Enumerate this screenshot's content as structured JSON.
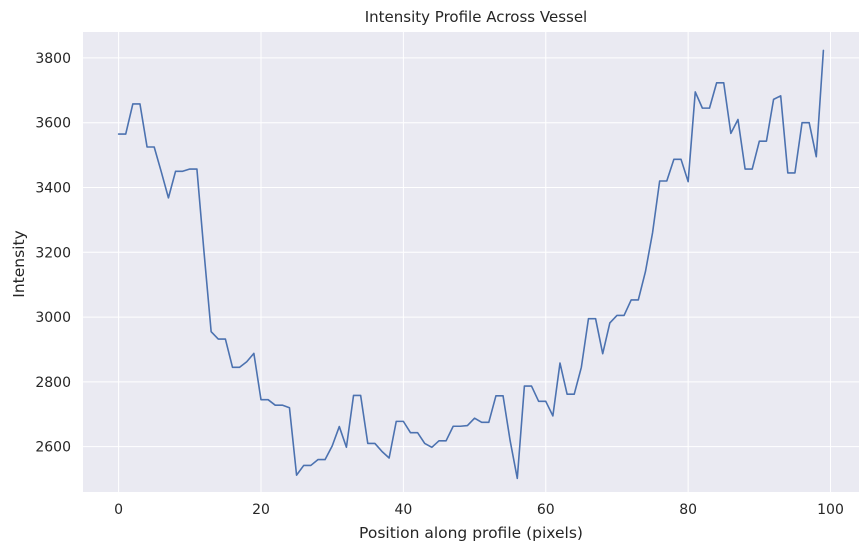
{
  "chart_data": {
    "type": "line",
    "title": "Intensity Profile Across Vessel",
    "xlabel": "Position along profile (pixels)",
    "ylabel": "Intensity",
    "xlim": [
      -5,
      104
    ],
    "ylim": [
      2460,
      3880
    ],
    "xticks": [
      0,
      20,
      40,
      60,
      80,
      100
    ],
    "yticks": [
      2600,
      2800,
      3000,
      3200,
      3400,
      3600,
      3800
    ],
    "grid": true,
    "background_color": "#eaeaf2",
    "grid_color": "#ffffff",
    "line_color": "#4c72b0",
    "series": [
      {
        "x": [
          0,
          1,
          2,
          3,
          4,
          5,
          6,
          7,
          8,
          9,
          10,
          11,
          12,
          13,
          14,
          15,
          16,
          17,
          18,
          19,
          20,
          21,
          22,
          23,
          24,
          25,
          26,
          27,
          28,
          29,
          30,
          31,
          32,
          33,
          34,
          35,
          36,
          37,
          38,
          39,
          40,
          41,
          42,
          43,
          44,
          45,
          46,
          47,
          48,
          49,
          50,
          51,
          52,
          53,
          54,
          55,
          56,
          57,
          58,
          59,
          60,
          61,
          62,
          63,
          64,
          65,
          66,
          67,
          68,
          69,
          70,
          71,
          72,
          73,
          74,
          75,
          76,
          77,
          78,
          79,
          80,
          81,
          82,
          83,
          84,
          85,
          86,
          87,
          88,
          89,
          90,
          91,
          92,
          93,
          94,
          95,
          96,
          97,
          98,
          99
        ],
        "values": [
          3565,
          3565,
          3658,
          3658,
          3525,
          3525,
          3448,
          3368,
          3450,
          3450,
          3457,
          3457,
          3200,
          2955,
          2932,
          2932,
          2845,
          2845,
          2862,
          2888,
          2745,
          2745,
          2728,
          2728,
          2720,
          2512,
          2542,
          2542,
          2560,
          2560,
          2602,
          2662,
          2598,
          2758,
          2758,
          2610,
          2610,
          2585,
          2565,
          2678,
          2678,
          2643,
          2643,
          2610,
          2598,
          2618,
          2618,
          2663,
          2663,
          2665,
          2688,
          2675,
          2675,
          2757,
          2757,
          2618,
          2502,
          2787,
          2787,
          2740,
          2740,
          2695,
          2858,
          2762,
          2762,
          2845,
          2995,
          2995,
          2887,
          2982,
          3005,
          3005,
          3053,
          3053,
          3140,
          3260,
          3420,
          3420,
          3487,
          3487,
          3418,
          3695,
          3645,
          3645,
          3723,
          3723,
          3567,
          3610,
          3457,
          3457,
          3543,
          3543,
          3672,
          3683,
          3445,
          3445,
          3600,
          3600,
          3495,
          3823
        ]
      }
    ]
  }
}
